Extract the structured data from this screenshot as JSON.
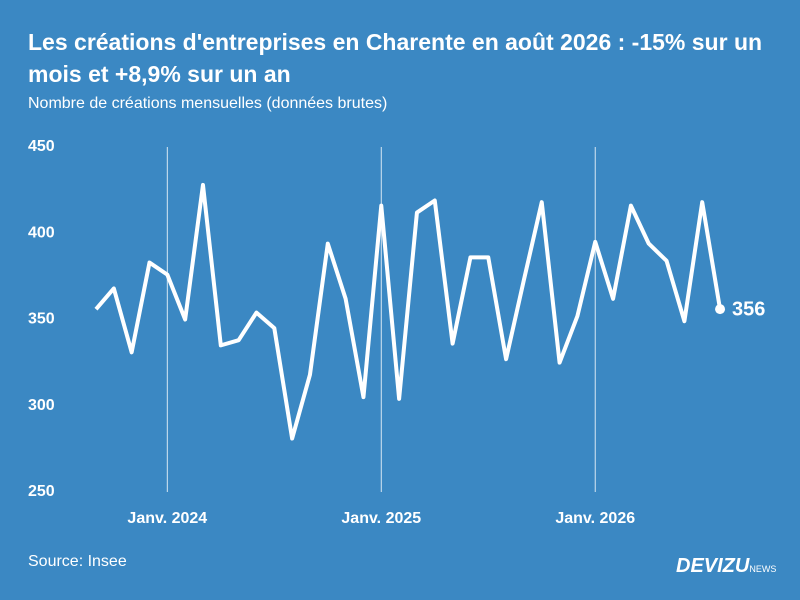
{
  "chart_data": {
    "type": "line",
    "title": "Les créations d'entreprises en Charente en août 2026 : -15% sur un mois et +8,9% sur un an",
    "subtitle": "Nombre de créations mensuelles (données brutes)",
    "categories": [
      null,
      null,
      null,
      null,
      "Janv. 2024",
      null,
      null,
      null,
      null,
      null,
      null,
      null,
      null,
      null,
      null,
      null,
      "Janv. 2025",
      null,
      null,
      null,
      null,
      null,
      null,
      null,
      null,
      null,
      null,
      null,
      "Janv. 2026",
      null,
      null,
      null,
      null,
      null,
      null,
      null
    ],
    "values": [
      356,
      368,
      331,
      383,
      376,
      350,
      428,
      335,
      338,
      354,
      345,
      281,
      318,
      394,
      362,
      305,
      416,
      304,
      412,
      419,
      336,
      386,
      386,
      327,
      373,
      418,
      325,
      352,
      395,
      362,
      416,
      394,
      384,
      349,
      418,
      356
    ],
    "color": "#ffffff",
    "ylim": [
      250,
      450
    ],
    "yticks": [
      250,
      300,
      350,
      400,
      450
    ],
    "source": "Source: Insee",
    "brand": "DEVIZU",
    "brand_suffix": "NEWS"
  }
}
